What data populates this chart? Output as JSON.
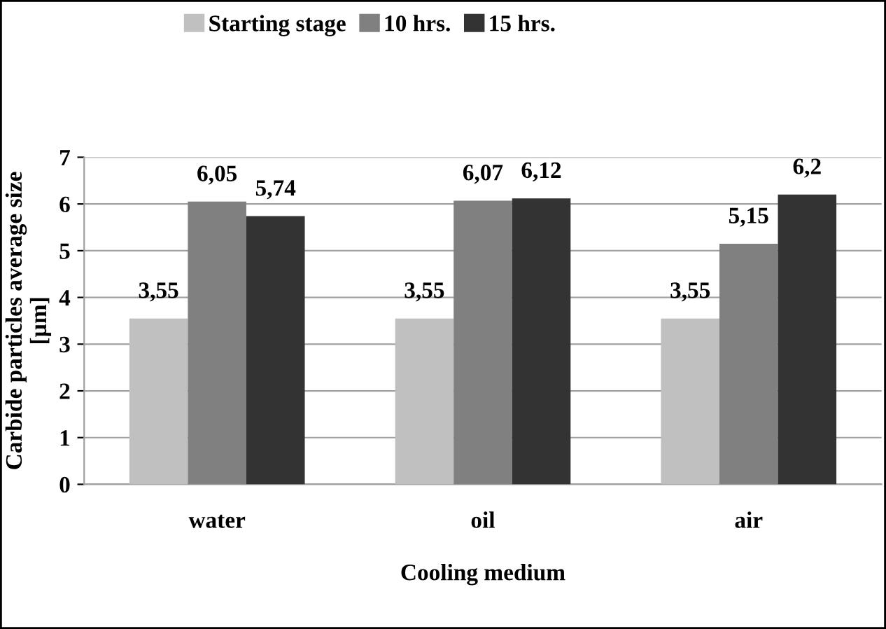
{
  "chart_data": {
    "type": "bar",
    "xlabel": "Cooling medium",
    "ylabel": "Carbide particles average size\n[µm]",
    "categories": [
      "water",
      "oil",
      "air"
    ],
    "series": [
      {
        "name": "Starting stage",
        "color": "#c0c0c0",
        "values": [
          3.55,
          3.55,
          3.55
        ],
        "value_labels": [
          "3,55",
          "3,55",
          "3,55"
        ]
      },
      {
        "name": "10 hrs.",
        "color": "#808080",
        "values": [
          6.05,
          6.07,
          5.15
        ],
        "value_labels": [
          "6,05",
          "6,07",
          "5,15"
        ]
      },
      {
        "name": "15 hrs.",
        "color": "#333333",
        "values": [
          5.74,
          6.12,
          6.2
        ],
        "value_labels": [
          "5,74",
          "6,12",
          "6,2"
        ]
      }
    ],
    "ylim": [
      0,
      7
    ],
    "yticks": [
      0,
      1,
      2,
      3,
      4,
      5,
      6,
      7
    ],
    "grid": "y",
    "legend": "top"
  }
}
